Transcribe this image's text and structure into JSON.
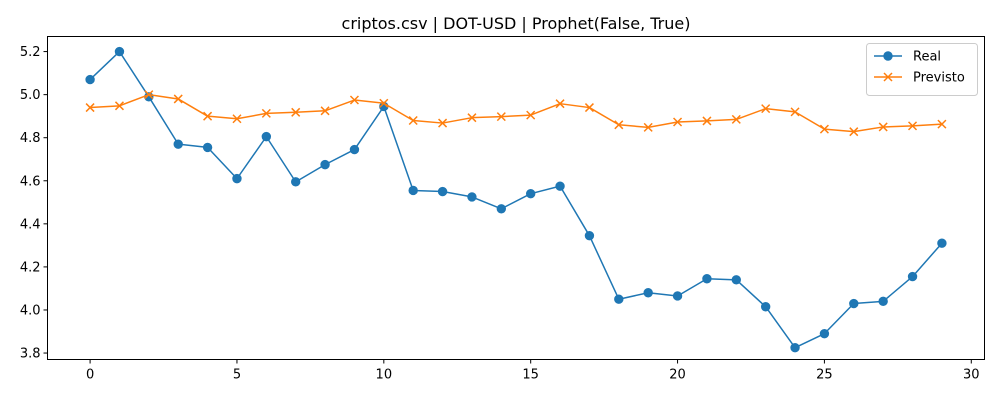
{
  "chart_data": {
    "type": "line",
    "title": "criptos.csv | DOT-USD | Prophet(False, True)",
    "xlabel": "",
    "ylabel": "",
    "xlim": [
      -1.45,
      30.45
    ],
    "ylim": [
      3.77,
      5.27
    ],
    "xticks": [
      0,
      5,
      10,
      15,
      20,
      25,
      30
    ],
    "yticks": [
      3.8,
      4.0,
      4.2,
      4.4,
      4.6,
      4.8,
      5.0,
      5.2
    ],
    "grid": false,
    "legend_position": "top-right",
    "x": [
      0,
      1,
      2,
      3,
      4,
      5,
      6,
      7,
      8,
      9,
      10,
      11,
      12,
      13,
      14,
      15,
      16,
      17,
      18,
      19,
      20,
      21,
      22,
      23,
      24,
      25,
      26,
      27,
      28,
      29
    ],
    "series": [
      {
        "name": "Real",
        "color": "#1f77b4",
        "marker": "circle",
        "values": [
          5.07,
          5.2,
          4.99,
          4.77,
          4.755,
          4.61,
          4.805,
          4.595,
          4.675,
          4.745,
          4.945,
          4.555,
          4.55,
          4.525,
          4.47,
          4.54,
          4.575,
          4.345,
          4.05,
          4.08,
          4.065,
          4.145,
          4.14,
          4.015,
          3.825,
          3.89,
          4.03,
          4.04,
          4.155,
          4.31
        ]
      },
      {
        "name": "Previsto",
        "color": "#ff7f0e",
        "marker": "x",
        "values": [
          4.94,
          4.948,
          5.0,
          4.98,
          4.9,
          4.888,
          4.913,
          4.918,
          4.925,
          4.975,
          4.96,
          4.88,
          4.868,
          4.893,
          4.898,
          4.905,
          4.958,
          4.94,
          4.86,
          4.848,
          4.873,
          4.878,
          4.885,
          4.935,
          4.92,
          4.84,
          4.828,
          4.85,
          4.855,
          4.863
        ]
      }
    ]
  }
}
